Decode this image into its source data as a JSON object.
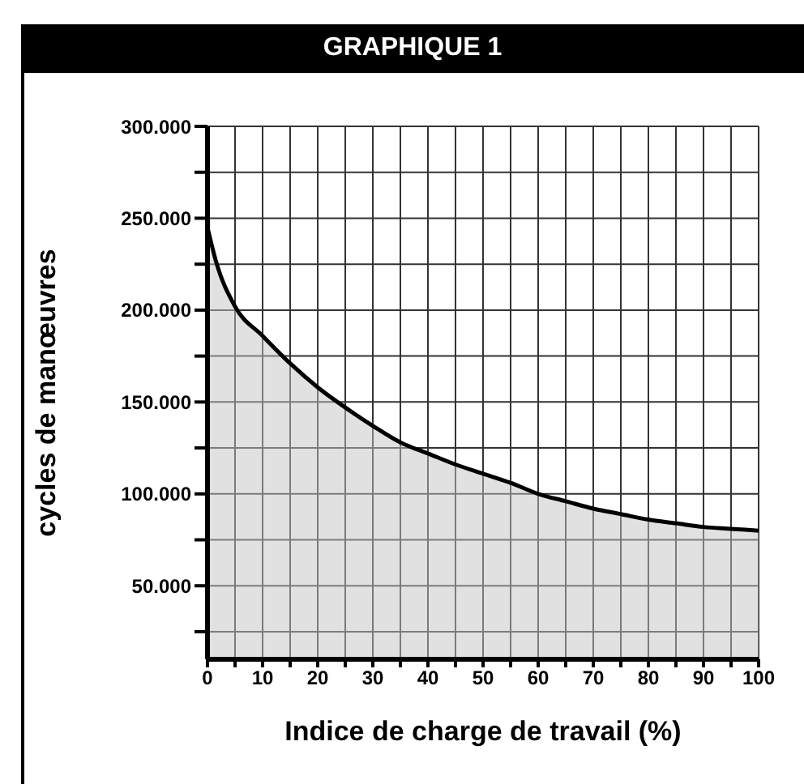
{
  "chart_data": {
    "type": "area",
    "title": "GRAPHIQUE 1",
    "xlabel": "Indice de charge de travail (%)",
    "ylabel": "cycles de manœuvres",
    "x": [
      0,
      1.5,
      5,
      10,
      15,
      20,
      25,
      30,
      35,
      40,
      45,
      50,
      55,
      60,
      65,
      70,
      75,
      80,
      85,
      90,
      95,
      100
    ],
    "series": [
      {
        "color": "#000000",
        "values": [
          245000,
          227000,
          202000,
          186000,
          171000,
          158000,
          147000,
          137000,
          128000,
          122000,
          116000,
          111000,
          106000,
          100000,
          96000,
          92000,
          89000,
          86000,
          84000,
          82000,
          81000,
          80000
        ]
      }
    ],
    "xlim": [
      0,
      100
    ],
    "xticks": [
      0,
      {
        "value": 5,
        "label": null
      },
      10,
      {
        "value": 15,
        "label": null
      },
      20,
      {
        "value": 25,
        "label": null
      },
      30,
      {
        "value": 35,
        "label": null
      },
      40,
      {
        "value": 45,
        "label": null
      },
      50,
      {
        "value": 55,
        "label": null
      },
      60,
      {
        "value": 65,
        "label": null
      },
      70,
      {
        "value": 75,
        "label": null
      },
      80,
      {
        "value": 85,
        "label": null
      },
      90,
      {
        "value": 95,
        "label": null
      },
      100
    ],
    "ylim": [
      10000,
      300000
    ],
    "yticks": [
      {
        "value": 25000,
        "label": null
      },
      {
        "value": 50000,
        "label": "50.000"
      },
      {
        "value": 75000,
        "label": null
      },
      {
        "value": 100000,
        "label": "100.000"
      },
      {
        "value": 125000,
        "label": null
      },
      {
        "value": 150000,
        "label": "150.000"
      },
      {
        "value": 175000,
        "label": null
      },
      {
        "value": 200000,
        "label": "200.000"
      },
      {
        "value": 225000,
        "label": null
      },
      {
        "value": 250000,
        "label": "250.000"
      },
      {
        "value": 275000,
        "label": null
      },
      {
        "value": 300000,
        "label": "300.000"
      }
    ],
    "grid": true,
    "legend": false
  }
}
